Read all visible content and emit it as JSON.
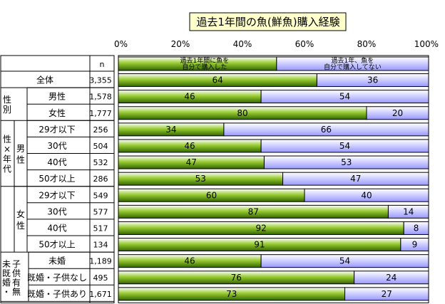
{
  "chart_data": {
    "type": "bar",
    "stacked": true,
    "orientation": "horizontal",
    "title": "過去1年間の魚(鮮魚)購入経験",
    "n_header": "n",
    "xlim": [
      0,
      100
    ],
    "x_ticks": [
      "0%",
      "20%",
      "40%",
      "60%",
      "80%",
      "100%"
    ],
    "legend": {
      "placement": "top",
      "entries": [
        {
          "label_line1": "過去1年間に魚を",
          "label_line2": "自分で購入した",
          "value": 51
        },
        {
          "label_line1": "過去1年、魚を",
          "label_line2": "自分で購入してない",
          "value": 49
        }
      ]
    },
    "colors": {
      "bought": "#99cc33",
      "not_bought": "#ccccff",
      "border": "#000000"
    },
    "groups": [
      {
        "label": "",
        "sub": "",
        "rows": [
          0
        ]
      },
      {
        "label": "性別",
        "sub": "",
        "rows": [
          1,
          2
        ]
      },
      {
        "label": "性×年代",
        "sub": "男性",
        "rows": [
          3,
          4,
          5,
          6
        ]
      },
      {
        "label": "",
        "sub": "女性",
        "rows": [
          7,
          8,
          9,
          10
        ]
      },
      {
        "label": "未既婚・子供有無",
        "sub": "",
        "rows": [
          11,
          12,
          13
        ]
      }
    ],
    "series": [
      {
        "name": "過去1年間に魚を自分で購入した",
        "values": [
          64,
          46,
          80,
          34,
          46,
          47,
          53,
          60,
          87,
          92,
          91,
          46,
          76,
          73
        ]
      },
      {
        "name": "過去1年、魚を自分で購入してない",
        "values": [
          36,
          54,
          20,
          66,
          54,
          53,
          47,
          40,
          14,
          8,
          9,
          54,
          24,
          27
        ]
      }
    ],
    "categories": [
      "全体",
      "男性",
      "女性",
      "29才以下",
      "30代",
      "40代",
      "50才以上",
      "29才以下",
      "30代",
      "40代",
      "50才以上",
      "未婚",
      "既婚・子供なし",
      "既婚・子供あり"
    ],
    "n_values": [
      "3,355",
      "1,578",
      "1,777",
      "256",
      "504",
      "532",
      "286",
      "549",
      "577",
      "517",
      "134",
      "1,189",
      "495",
      "1,671"
    ]
  }
}
